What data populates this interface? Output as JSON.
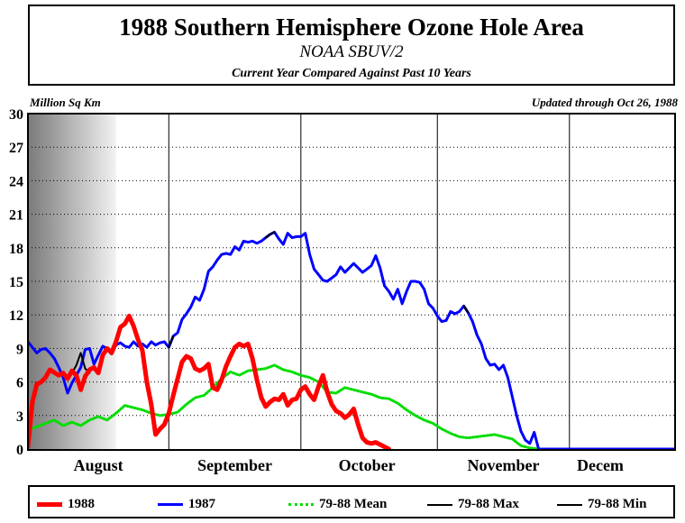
{
  "header": {
    "title": "1988 Southern Hemisphere Ozone Hole Area",
    "subtitle": "NOAA SBUV/2",
    "subsubtitle": "Current Year Compared Against Past 10 Years",
    "units": "Million Sq Km",
    "updated": "Updated through Oct 26, 1988"
  },
  "legend": {
    "items": [
      {
        "label": "1988",
        "color": "#ff0000",
        "style": "solid-thick"
      },
      {
        "label": "1987",
        "color": "#0000ff",
        "style": "solid"
      },
      {
        "label": "79-88 Mean",
        "color": "#00dd00",
        "style": "dotted"
      },
      {
        "label": "79-88 Max",
        "color": "#000000",
        "style": "solid"
      },
      {
        "label": "79-88 Min",
        "color": "#000000",
        "style": "solid"
      }
    ]
  },
  "chart_data": {
    "type": "line",
    "title": "1988 Southern Hemisphere Ozone Hole Area",
    "ylabel": "Million Sq Km",
    "ylim": [
      0,
      30
    ],
    "yticks": [
      0,
      3,
      6,
      9,
      12,
      15,
      18,
      21,
      24,
      27,
      30
    ],
    "ytick_labels": [
      "0",
      "3",
      "6",
      "9",
      "12",
      "15",
      "18",
      "21",
      "24",
      "27",
      "30"
    ],
    "xlim": [
      "Jul 31",
      "Dec 25"
    ],
    "month_boundaries": [
      "Sep 1",
      "Oct 1",
      "Nov 1",
      "Dec 1"
    ],
    "month_labels": [
      {
        "label": "August",
        "center": "Aug 16"
      },
      {
        "label": "September",
        "center": "Sep 16"
      },
      {
        "label": "October",
        "center": "Oct 16"
      },
      {
        "label": "November",
        "center": "Nov 16"
      },
      {
        "label": "Decem",
        "center": "Dec 8"
      }
    ],
    "polar_night_shading": {
      "from": "Jul 31",
      "to": "Aug 20"
    },
    "grid": "dotted-horizontal",
    "series": [
      {
        "name": "1988",
        "color": "#ff0000",
        "points": [
          [
            "Jul 31",
            0.2
          ],
          [
            "Aug 1",
            4.2
          ],
          [
            "Aug 2",
            5.8
          ],
          [
            "Aug 3",
            6.0
          ],
          [
            "Aug 4",
            6.4
          ],
          [
            "Aug 5",
            7.1
          ],
          [
            "Aug 7",
            6.6
          ],
          [
            "Aug 8",
            6.8
          ],
          [
            "Aug 9",
            6.3
          ],
          [
            "Aug 10",
            7.0
          ],
          [
            "Aug 11",
            6.6
          ],
          [
            "Aug 12",
            5.3
          ],
          [
            "Aug 13",
            6.5
          ],
          [
            "Aug 14",
            7.1
          ],
          [
            "Aug 15",
            7.3
          ],
          [
            "Aug 16",
            6.8
          ],
          [
            "Aug 17",
            8.4
          ],
          [
            "Aug 18",
            9.0
          ],
          [
            "Aug 19",
            8.6
          ],
          [
            "Aug 20",
            9.6
          ],
          [
            "Aug 21",
            10.9
          ],
          [
            "Aug 22",
            11.2
          ],
          [
            "Aug 23",
            11.9
          ],
          [
            "Aug 24",
            11.0
          ],
          [
            "Aug 25",
            9.8
          ],
          [
            "Aug 26",
            8.8
          ],
          [
            "Aug 27",
            6.0
          ],
          [
            "Aug 28",
            4.0
          ],
          [
            "Aug 29",
            1.3
          ],
          [
            "Aug 30",
            1.8
          ],
          [
            "Aug 31",
            2.2
          ],
          [
            "Sep 1",
            3.2
          ],
          [
            "Sep 2",
            4.8
          ],
          [
            "Sep 3",
            6.3
          ],
          [
            "Sep 4",
            7.8
          ],
          [
            "Sep 5",
            8.3
          ],
          [
            "Sep 6",
            8.1
          ],
          [
            "Sep 7",
            7.2
          ],
          [
            "Sep 8",
            7.0
          ],
          [
            "Sep 9",
            7.2
          ],
          [
            "Sep 10",
            7.6
          ],
          [
            "Sep 11",
            5.5
          ],
          [
            "Sep 12",
            5.3
          ],
          [
            "Sep 13",
            6.2
          ],
          [
            "Sep 14",
            7.4
          ],
          [
            "Sep 15",
            8.3
          ],
          [
            "Sep 16",
            9.1
          ],
          [
            "Sep 17",
            9.4
          ],
          [
            "Sep 18",
            9.2
          ],
          [
            "Sep 19",
            9.4
          ],
          [
            "Sep 20",
            8.1
          ],
          [
            "Sep 21",
            6.2
          ],
          [
            "Sep 22",
            4.6
          ],
          [
            "Sep 23",
            3.8
          ],
          [
            "Sep 24",
            4.2
          ],
          [
            "Sep 25",
            4.5
          ],
          [
            "Sep 26",
            4.4
          ],
          [
            "Sep 27",
            4.9
          ],
          [
            "Sep 28",
            3.9
          ],
          [
            "Sep 29",
            4.4
          ],
          [
            "Sep 30",
            4.5
          ],
          [
            "Oct 1",
            5.3
          ],
          [
            "Oct 2",
            5.6
          ],
          [
            "Oct 3",
            4.9
          ],
          [
            "Oct 4",
            4.4
          ],
          [
            "Oct 5",
            5.6
          ],
          [
            "Oct 6",
            6.6
          ],
          [
            "Oct 7",
            5.1
          ],
          [
            "Oct 8",
            4.0
          ],
          [
            "Oct 9",
            3.4
          ],
          [
            "Oct 10",
            3.2
          ],
          [
            "Oct 11",
            2.8
          ],
          [
            "Oct 12",
            3.1
          ],
          [
            "Oct 13",
            3.6
          ],
          [
            "Oct 14",
            2.2
          ],
          [
            "Oct 15",
            1.0
          ],
          [
            "Oct 16",
            0.6
          ],
          [
            "Oct 17",
            0.5
          ],
          [
            "Oct 18",
            0.6
          ],
          [
            "Oct 19",
            0.4
          ],
          [
            "Oct 20",
            0.2
          ],
          [
            "Oct 21",
            0.0
          ]
        ]
      },
      {
        "name": "1987",
        "color": "#0000ff",
        "points": [
          [
            "Jul 31",
            9.6
          ],
          [
            "Aug 1",
            9.1
          ],
          [
            "Aug 2",
            8.6
          ],
          [
            "Aug 3",
            8.9
          ],
          [
            "Aug 4",
            9.0
          ],
          [
            "Aug 5",
            8.6
          ],
          [
            "Aug 6",
            8.1
          ],
          [
            "Aug 7",
            7.3
          ],
          [
            "Aug 8",
            6.4
          ],
          [
            "Aug 9",
            5.0
          ],
          [
            "Aug 10",
            5.9
          ],
          [
            "Aug 11",
            6.6
          ],
          [
            "Aug 12",
            7.3
          ],
          [
            "Aug 13",
            8.9
          ],
          [
            "Aug 14",
            9.0
          ],
          [
            "Aug 15",
            7.6
          ],
          [
            "Aug 16",
            8.4
          ],
          [
            "Aug 17",
            9.2
          ],
          [
            "Aug 18",
            9.0
          ],
          [
            "Aug 19",
            8.5
          ],
          [
            "Aug 20",
            9.3
          ],
          [
            "Aug 21",
            9.5
          ],
          [
            "Aug 22",
            9.2
          ],
          [
            "Aug 23",
            9.1
          ],
          [
            "Aug 24",
            9.6
          ],
          [
            "Aug 25",
            9.2
          ],
          [
            "Aug 26",
            9.4
          ],
          [
            "Aug 27",
            9.1
          ],
          [
            "Aug 28",
            9.6
          ],
          [
            "Aug 29",
            9.3
          ],
          [
            "Aug 30",
            9.5
          ],
          [
            "Aug 31",
            9.6
          ],
          [
            "Sep 1",
            9.1
          ],
          [
            "Sep 2",
            10.1
          ],
          [
            "Sep 3",
            10.4
          ],
          [
            "Sep 4",
            11.6
          ],
          [
            "Sep 5",
            12.1
          ],
          [
            "Sep 6",
            12.7
          ],
          [
            "Sep 7",
            13.6
          ],
          [
            "Sep 8",
            13.3
          ],
          [
            "Sep 9",
            14.3
          ],
          [
            "Sep 10",
            15.9
          ],
          [
            "Sep 11",
            16.3
          ],
          [
            "Sep 12",
            16.9
          ],
          [
            "Sep 13",
            17.4
          ],
          [
            "Sep 14",
            17.5
          ],
          [
            "Sep 15",
            17.4
          ],
          [
            "Sep 16",
            18.1
          ],
          [
            "Sep 17",
            17.8
          ],
          [
            "Sep 18",
            18.6
          ],
          [
            "Sep 19",
            18.5
          ],
          [
            "Sep 20",
            18.6
          ],
          [
            "Sep 21",
            18.4
          ],
          [
            "Sep 22",
            18.6
          ],
          [
            "Sep 23",
            18.9
          ],
          [
            "Sep 24",
            19.2
          ],
          [
            "Sep 25",
            19.4
          ],
          [
            "Sep 26",
            18.8
          ],
          [
            "Sep 27",
            18.3
          ],
          [
            "Sep 28",
            19.3
          ],
          [
            "Sep 29",
            18.9
          ],
          [
            "Sep 30",
            19.0
          ],
          [
            "Oct 1",
            19.0
          ],
          [
            "Oct 2",
            19.3
          ],
          [
            "Oct 3",
            17.4
          ],
          [
            "Oct 4",
            16.1
          ],
          [
            "Oct 5",
            15.6
          ],
          [
            "Oct 6",
            15.1
          ],
          [
            "Oct 7",
            15.0
          ],
          [
            "Oct 8",
            15.3
          ],
          [
            "Oct 9",
            15.6
          ],
          [
            "Oct 10",
            16.3
          ],
          [
            "Oct 11",
            15.8
          ],
          [
            "Oct 12",
            16.2
          ],
          [
            "Oct 13",
            16.6
          ],
          [
            "Oct 14",
            16.2
          ],
          [
            "Oct 15",
            15.8
          ],
          [
            "Oct 16",
            16.1
          ],
          [
            "Oct 17",
            16.4
          ],
          [
            "Oct 18",
            17.3
          ],
          [
            "Oct 19",
            16.2
          ],
          [
            "Oct 20",
            14.6
          ],
          [
            "Oct 21",
            14.1
          ],
          [
            "Oct 22",
            13.4
          ],
          [
            "Oct 23",
            14.3
          ],
          [
            "Oct 24",
            13.0
          ],
          [
            "Oct 25",
            14.1
          ],
          [
            "Oct 26",
            15.0
          ],
          [
            "Oct 27",
            15.0
          ],
          [
            "Oct 28",
            14.9
          ],
          [
            "Oct 29",
            14.3
          ],
          [
            "Oct 30",
            13.0
          ],
          [
            "Oct 31",
            12.6
          ],
          [
            "Nov 1",
            11.9
          ],
          [
            "Nov 2",
            11.4
          ],
          [
            "Nov 3",
            11.5
          ],
          [
            "Nov 4",
            12.3
          ],
          [
            "Nov 5",
            12.1
          ],
          [
            "Nov 6",
            12.3
          ],
          [
            "Nov 7",
            12.8
          ],
          [
            "Nov 8",
            12.2
          ],
          [
            "Nov 9",
            11.4
          ],
          [
            "Nov 10",
            10.2
          ],
          [
            "Nov 11",
            9.4
          ],
          [
            "Nov 12",
            8.1
          ],
          [
            "Nov 13",
            7.5
          ],
          [
            "Nov 14",
            7.6
          ],
          [
            "Nov 15",
            7.1
          ],
          [
            "Nov 16",
            7.5
          ],
          [
            "Nov 17",
            6.4
          ],
          [
            "Nov 18",
            4.7
          ],
          [
            "Nov 19",
            3.0
          ],
          [
            "Nov 20",
            1.6
          ],
          [
            "Nov 21",
            0.8
          ],
          [
            "Nov 22",
            0.5
          ],
          [
            "Nov 23",
            1.5
          ],
          [
            "Nov 24",
            0.0
          ],
          [
            "Dec 25",
            0.0
          ]
        ]
      },
      {
        "name": "79-88 Mean",
        "color": "#00dd00",
        "points": [
          [
            "Jul 31",
            1.7
          ],
          [
            "Aug 2",
            2.0
          ],
          [
            "Aug 4",
            2.3
          ],
          [
            "Aug 6",
            2.6
          ],
          [
            "Aug 8",
            2.1
          ],
          [
            "Aug 10",
            2.4
          ],
          [
            "Aug 12",
            2.1
          ],
          [
            "Aug 14",
            2.6
          ],
          [
            "Aug 16",
            2.9
          ],
          [
            "Aug 18",
            2.6
          ],
          [
            "Aug 20",
            3.2
          ],
          [
            "Aug 22",
            3.9
          ],
          [
            "Aug 24",
            3.7
          ],
          [
            "Aug 26",
            3.5
          ],
          [
            "Aug 28",
            3.2
          ],
          [
            "Aug 30",
            3.0
          ],
          [
            "Sep 1",
            3.1
          ],
          [
            "Sep 3",
            3.3
          ],
          [
            "Sep 5",
            4.0
          ],
          [
            "Sep 7",
            4.6
          ],
          [
            "Sep 9",
            4.8
          ],
          [
            "Sep 11",
            5.5
          ],
          [
            "Sep 13",
            6.3
          ],
          [
            "Sep 15",
            6.9
          ],
          [
            "Sep 17",
            6.6
          ],
          [
            "Sep 19",
            7.0
          ],
          [
            "Sep 21",
            7.1
          ],
          [
            "Sep 23",
            7.2
          ],
          [
            "Sep 25",
            7.5
          ],
          [
            "Sep 27",
            7.1
          ],
          [
            "Sep 29",
            6.9
          ],
          [
            "Oct 1",
            6.6
          ],
          [
            "Oct 3",
            6.4
          ],
          [
            "Oct 5",
            6.0
          ],
          [
            "Oct 7",
            5.1
          ],
          [
            "Oct 9",
            5.0
          ],
          [
            "Oct 11",
            5.5
          ],
          [
            "Oct 13",
            5.3
          ],
          [
            "Oct 15",
            5.1
          ],
          [
            "Oct 17",
            4.9
          ],
          [
            "Oct 19",
            4.6
          ],
          [
            "Oct 21",
            4.5
          ],
          [
            "Oct 23",
            4.1
          ],
          [
            "Oct 25",
            3.5
          ],
          [
            "Oct 27",
            3.0
          ],
          [
            "Oct 29",
            2.6
          ],
          [
            "Oct 31",
            2.3
          ],
          [
            "Nov 2",
            1.8
          ],
          [
            "Nov 4",
            1.4
          ],
          [
            "Nov 6",
            1.1
          ],
          [
            "Nov 8",
            1.0
          ],
          [
            "Nov 10",
            1.1
          ],
          [
            "Nov 12",
            1.2
          ],
          [
            "Nov 14",
            1.3
          ],
          [
            "Nov 16",
            1.1
          ],
          [
            "Nov 18",
            0.9
          ],
          [
            "Nov 20",
            0.3
          ],
          [
            "Nov 22",
            0.1
          ],
          [
            "Nov 24",
            0.0
          ]
        ]
      },
      {
        "name": "79-88 Max",
        "color": "#000000",
        "points": [
          [
            "Aug 10",
            6.8
          ],
          [
            "Aug 11",
            7.5
          ],
          [
            "Aug 12",
            8.6
          ],
          [
            "Aug 13",
            7.2
          ],
          [
            "Aug 14",
            6.8
          ],
          [
            "Sep 1",
            9.1
          ],
          [
            "Sep 2",
            10.1
          ],
          [
            "Sep 23",
            18.9
          ],
          [
            "Sep 24",
            19.2
          ],
          [
            "Sep 25",
            19.4
          ],
          [
            "Nov 7",
            12.8
          ],
          [
            "Nov 8",
            12.2
          ]
        ]
      },
      {
        "name": "79-88 Min",
        "color": "#000000",
        "points": [
          [
            "Jul 31",
            0.0
          ],
          [
            "Jul 31",
            0.2
          ]
        ]
      }
    ]
  }
}
